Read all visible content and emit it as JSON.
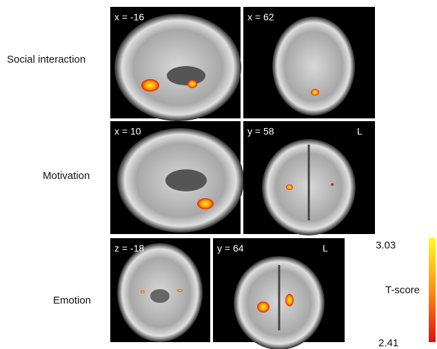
{
  "rows": [
    {
      "label": "Social interaction",
      "panels": [
        {
          "coord": "x = -16"
        },
        {
          "coord": "x = 62"
        }
      ]
    },
    {
      "label": "Motivation",
      "panels": [
        {
          "coord": "x = 10"
        },
        {
          "coord": "y = 58",
          "side": "L"
        }
      ]
    },
    {
      "label": "Emotion",
      "panels": [
        {
          "coord": "z = -18"
        },
        {
          "coord": "y = 64",
          "side": "L"
        }
      ]
    }
  ],
  "colorbar": {
    "title": "T-score",
    "max": 3.03,
    "min": 2.41
  }
}
